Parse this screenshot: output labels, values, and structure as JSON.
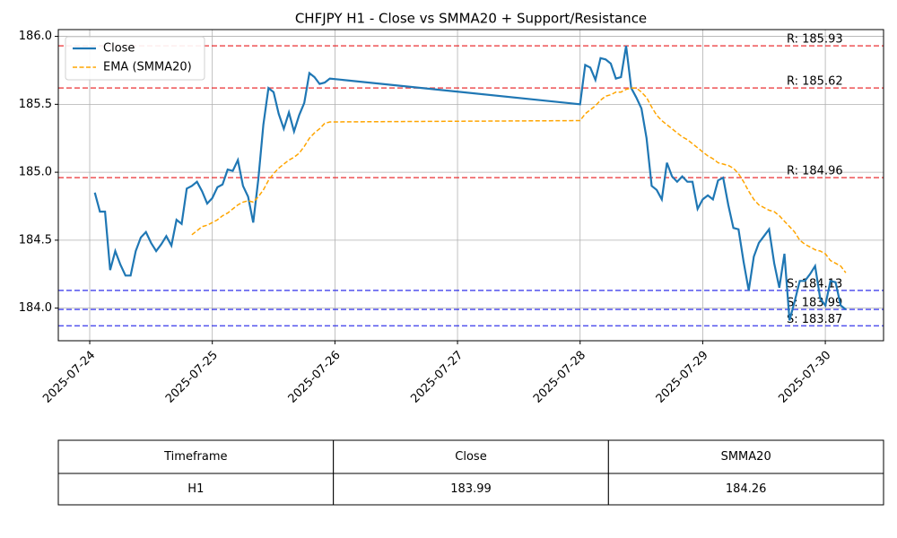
{
  "chart_data": {
    "type": "line",
    "title": "CHFJPY H1 - Close vs SMMA20 + Support/Resistance",
    "x": [
      "2025-07-24 01:00",
      "2025-07-24 02:00",
      "2025-07-24 03:00",
      "2025-07-24 04:00",
      "2025-07-24 05:00",
      "2025-07-24 06:00",
      "2025-07-24 07:00",
      "2025-07-24 08:00",
      "2025-07-24 09:00",
      "2025-07-24 10:00",
      "2025-07-24 11:00",
      "2025-07-24 12:00",
      "2025-07-24 13:00",
      "2025-07-24 14:00",
      "2025-07-24 15:00",
      "2025-07-24 16:00",
      "2025-07-24 17:00",
      "2025-07-24 18:00",
      "2025-07-24 19:00",
      "2025-07-24 20:00",
      "2025-07-24 21:00",
      "2025-07-24 22:00",
      "2025-07-24 23:00",
      "2025-07-25 00:00",
      "2025-07-25 01:00",
      "2025-07-25 02:00",
      "2025-07-25 03:00",
      "2025-07-25 04:00",
      "2025-07-25 05:00",
      "2025-07-25 06:00",
      "2025-07-25 07:00",
      "2025-07-25 08:00",
      "2025-07-25 09:00",
      "2025-07-25 10:00",
      "2025-07-25 11:00",
      "2025-07-25 12:00",
      "2025-07-25 13:00",
      "2025-07-25 14:00",
      "2025-07-25 15:00",
      "2025-07-25 16:00",
      "2025-07-25 17:00",
      "2025-07-25 18:00",
      "2025-07-25 19:00",
      "2025-07-25 20:00",
      "2025-07-25 21:00",
      "2025-07-25 22:00",
      "2025-07-25 23:00",
      "2025-07-28 00:00",
      "2025-07-28 01:00",
      "2025-07-28 02:00",
      "2025-07-28 03:00",
      "2025-07-28 04:00",
      "2025-07-28 05:00",
      "2025-07-28 06:00",
      "2025-07-28 07:00",
      "2025-07-28 08:00",
      "2025-07-28 09:00",
      "2025-07-28 10:00",
      "2025-07-28 11:00",
      "2025-07-28 12:00",
      "2025-07-28 13:00",
      "2025-07-28 14:00",
      "2025-07-28 15:00",
      "2025-07-28 16:00",
      "2025-07-28 17:00",
      "2025-07-28 18:00",
      "2025-07-28 19:00",
      "2025-07-28 20:00",
      "2025-07-28 21:00",
      "2025-07-28 22:00",
      "2025-07-28 23:00",
      "2025-07-29 00:00",
      "2025-07-29 01:00",
      "2025-07-29 02:00",
      "2025-07-29 03:00",
      "2025-07-29 04:00",
      "2025-07-29 05:00",
      "2025-07-29 06:00",
      "2025-07-29 07:00",
      "2025-07-29 08:00",
      "2025-07-29 09:00",
      "2025-07-29 10:00",
      "2025-07-29 11:00",
      "2025-07-29 12:00",
      "2025-07-29 13:00",
      "2025-07-29 14:00",
      "2025-07-29 15:00",
      "2025-07-29 16:00",
      "2025-07-29 17:00",
      "2025-07-29 18:00",
      "2025-07-29 19:00",
      "2025-07-29 20:00",
      "2025-07-29 21:00",
      "2025-07-29 22:00",
      "2025-07-29 23:00",
      "2025-07-30 00:00",
      "2025-07-30 01:00",
      "2025-07-30 02:00",
      "2025-07-30 03:00",
      "2025-07-30 04:00"
    ],
    "series": [
      {
        "name": "Close",
        "color": "#1f77b4",
        "style": "solid",
        "values": [
          184.85,
          184.71,
          184.71,
          184.28,
          184.42,
          184.32,
          184.24,
          184.24,
          184.42,
          184.52,
          184.56,
          184.48,
          184.42,
          184.47,
          184.53,
          184.46,
          184.65,
          184.62,
          184.88,
          184.9,
          184.93,
          184.86,
          184.77,
          184.81,
          184.89,
          184.91,
          185.02,
          185.01,
          185.09,
          184.9,
          184.82,
          184.63,
          184.95,
          185.35,
          185.62,
          185.59,
          185.43,
          185.32,
          185.44,
          185.3,
          185.42,
          185.51,
          185.73,
          185.7,
          185.65,
          185.66,
          185.69,
          185.5,
          185.79,
          185.77,
          185.68,
          185.84,
          185.83,
          185.8,
          185.69,
          185.7,
          185.93,
          185.62,
          185.55,
          185.47,
          185.25,
          184.9,
          184.87,
          184.8,
          185.07,
          184.97,
          184.93,
          184.97,
          184.93,
          184.93,
          184.73,
          184.8,
          184.83,
          184.8,
          184.94,
          184.96,
          184.76,
          184.59,
          184.58,
          184.34,
          184.13,
          184.38,
          184.48,
          184.53,
          184.58,
          184.33,
          184.15,
          184.4,
          183.91,
          184.05,
          184.2,
          184.2,
          184.25,
          184.31,
          184.07,
          184.02,
          184.2,
          184.19,
          184.02,
          183.99
        ]
      },
      {
        "name": "EMA (SMMA20)",
        "color": "#ffa500",
        "style": "dashed",
        "values": [
          null,
          null,
          null,
          null,
          null,
          null,
          null,
          null,
          null,
          null,
          null,
          null,
          null,
          null,
          null,
          null,
          null,
          null,
          null,
          184.54,
          184.57,
          184.6,
          184.61,
          184.63,
          184.65,
          184.68,
          184.7,
          184.73,
          184.76,
          184.78,
          184.79,
          184.78,
          184.82,
          184.87,
          184.94,
          184.99,
          185.03,
          185.06,
          185.09,
          185.11,
          185.14,
          185.19,
          185.25,
          185.29,
          185.32,
          185.36,
          185.37,
          185.38,
          185.43,
          185.46,
          185.49,
          185.53,
          185.56,
          185.57,
          185.59,
          185.59,
          185.61,
          185.62,
          185.62,
          185.59,
          185.55,
          185.48,
          185.42,
          185.38,
          185.35,
          185.32,
          185.29,
          185.26,
          185.24,
          185.21,
          185.18,
          185.15,
          185.12,
          185.1,
          185.07,
          185.06,
          185.05,
          185.03,
          184.99,
          184.93,
          184.86,
          184.8,
          184.76,
          184.74,
          184.72,
          184.71,
          184.68,
          184.64,
          184.6,
          184.56,
          184.5,
          184.47,
          184.45,
          184.43,
          184.42,
          184.4,
          184.35,
          184.33,
          184.31,
          184.26
        ]
      }
    ],
    "levels": [
      {
        "label": "R: 185.93",
        "value": 185.93,
        "color": "#e8191c"
      },
      {
        "label": "R: 185.62",
        "value": 185.62,
        "color": "#e8191c"
      },
      {
        "label": "R: 184.96",
        "value": 184.96,
        "color": "#e8191c"
      },
      {
        "label": "S: 184.13",
        "value": 184.13,
        "color": "#1a1ae8"
      },
      {
        "label": "S: 183.99",
        "value": 183.99,
        "color": "#1a1ae8"
      },
      {
        "label": "S: 183.87",
        "value": 183.87,
        "color": "#1a1ae8"
      }
    ],
    "xlim": [
      "2025-07-23 17:51",
      "2025-07-30 11:24"
    ],
    "xticks": [
      "2025-07-24",
      "2025-07-25",
      "2025-07-26",
      "2025-07-27",
      "2025-07-28",
      "2025-07-29",
      "2025-07-30"
    ],
    "ylim": [
      183.76,
      186.05
    ],
    "yticks": [
      {
        "value": 184,
        "label": "184.0"
      },
      {
        "value": 184.5,
        "label": "184.5"
      },
      {
        "value": 185,
        "label": "185.0"
      },
      {
        "value": 185.5,
        "label": "185.5"
      },
      {
        "value": 186,
        "label": "186.0"
      }
    ],
    "grid": true,
    "legend": "upper left"
  },
  "table": {
    "header": [
      "Timeframe",
      "Close",
      "SMMA20"
    ],
    "rows": [
      [
        "H1",
        183.99,
        184.26
      ]
    ]
  }
}
